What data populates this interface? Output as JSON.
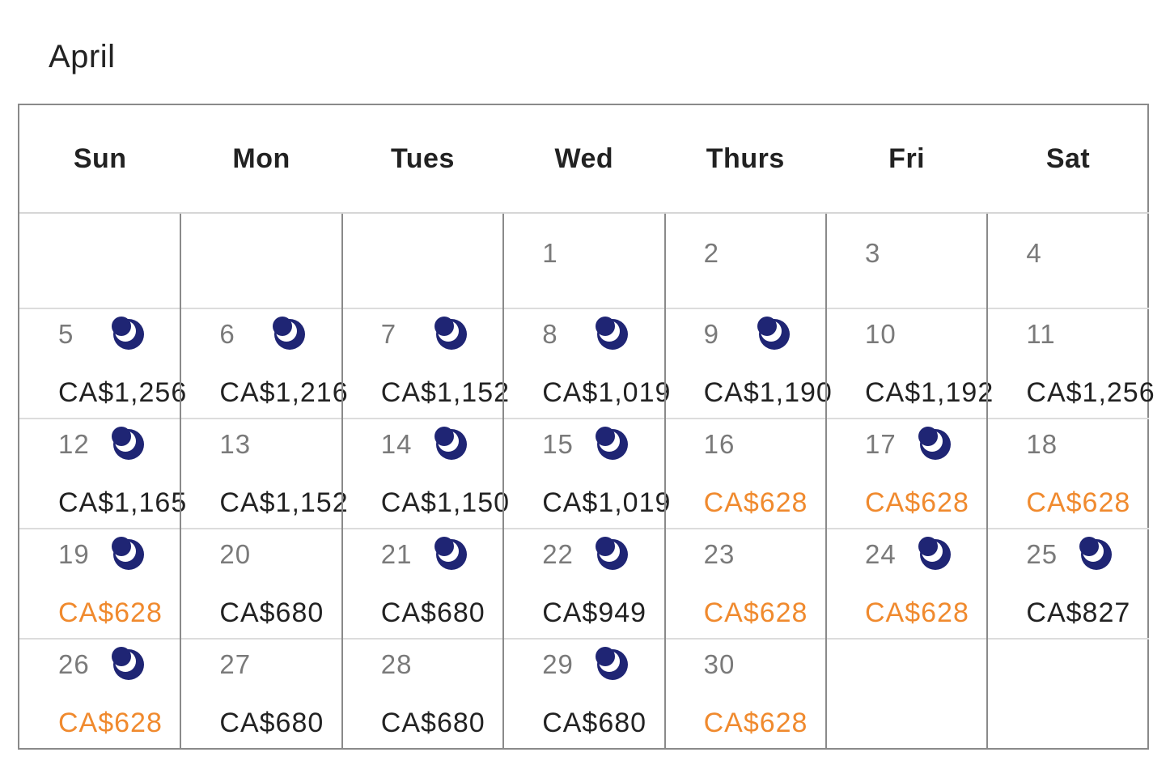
{
  "month": "April",
  "weekdays": [
    "Sun",
    "Mon",
    "Tues",
    "Wed",
    "Thurs",
    "Fri",
    "Sat"
  ],
  "colors": {
    "deal_price": "#f08a2e",
    "normal_price": "#222222",
    "moon": "#1f2574"
  },
  "weeks": [
    {
      "days": [
        {
          "num": "",
          "price": "",
          "moon": false,
          "deal": false
        },
        {
          "num": "",
          "price": "",
          "moon": false,
          "deal": false
        },
        {
          "num": "",
          "price": "",
          "moon": false,
          "deal": false
        },
        {
          "num": "1",
          "price": "",
          "moon": false,
          "deal": false
        },
        {
          "num": "2",
          "price": "",
          "moon": false,
          "deal": false
        },
        {
          "num": "3",
          "price": "",
          "moon": false,
          "deal": false
        },
        {
          "num": "4",
          "price": "",
          "moon": false,
          "deal": false
        }
      ]
    },
    {
      "days": [
        {
          "num": "5",
          "price": "CA$1,256",
          "moon": true,
          "deal": false
        },
        {
          "num": "6",
          "price": "CA$1,216",
          "moon": true,
          "deal": false
        },
        {
          "num": "7",
          "price": "CA$1,152",
          "moon": true,
          "deal": false
        },
        {
          "num": "8",
          "price": "CA$1,019",
          "moon": true,
          "deal": false
        },
        {
          "num": "9",
          "price": "CA$1,190",
          "moon": true,
          "deal": false
        },
        {
          "num": "10",
          "price": "CA$1,192",
          "moon": false,
          "deal": false
        },
        {
          "num": "11",
          "price": "CA$1,256",
          "moon": false,
          "deal": false
        }
      ]
    },
    {
      "days": [
        {
          "num": "12",
          "price": "CA$1,165",
          "moon": true,
          "deal": false
        },
        {
          "num": "13",
          "price": "CA$1,152",
          "moon": false,
          "deal": false
        },
        {
          "num": "14",
          "price": "CA$1,150",
          "moon": true,
          "deal": false
        },
        {
          "num": "15",
          "price": "CA$1,019",
          "moon": true,
          "deal": false
        },
        {
          "num": "16",
          "price": "CA$628",
          "moon": false,
          "deal": true
        },
        {
          "num": "17",
          "price": "CA$628",
          "moon": true,
          "deal": true
        },
        {
          "num": "18",
          "price": "CA$628",
          "moon": false,
          "deal": true
        }
      ]
    },
    {
      "days": [
        {
          "num": "19",
          "price": "CA$628",
          "moon": true,
          "deal": true
        },
        {
          "num": "20",
          "price": "CA$680",
          "moon": false,
          "deal": false
        },
        {
          "num": "21",
          "price": "CA$680",
          "moon": true,
          "deal": false
        },
        {
          "num": "22",
          "price": "CA$949",
          "moon": true,
          "deal": false
        },
        {
          "num": "23",
          "price": "CA$628",
          "moon": false,
          "deal": true
        },
        {
          "num": "24",
          "price": "CA$628",
          "moon": true,
          "deal": true
        },
        {
          "num": "25",
          "price": "CA$827",
          "moon": true,
          "deal": false
        }
      ]
    },
    {
      "days": [
        {
          "num": "26",
          "price": "CA$628",
          "moon": true,
          "deal": true
        },
        {
          "num": "27",
          "price": "CA$680",
          "moon": false,
          "deal": false
        },
        {
          "num": "28",
          "price": "CA$680",
          "moon": false,
          "deal": false
        },
        {
          "num": "29",
          "price": "CA$680",
          "moon": true,
          "deal": false
        },
        {
          "num": "30",
          "price": "CA$628",
          "moon": false,
          "deal": true
        },
        {
          "num": "",
          "price": "",
          "moon": false,
          "deal": false
        },
        {
          "num": "",
          "price": "",
          "moon": false,
          "deal": false
        }
      ]
    }
  ]
}
